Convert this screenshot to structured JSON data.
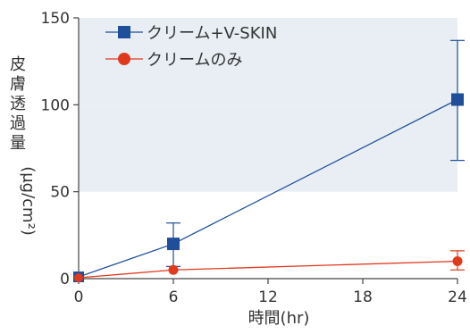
{
  "chart_data": {
    "type": "line",
    "title": "",
    "xlabel": "時間(hr)",
    "ylabel": "皮膚透過量 (μg/cm²)",
    "ylabel_parts": {
      "vertical": [
        "皮",
        "膚",
        "透",
        "過",
        "量"
      ],
      "rotated": "(μg/cm²)"
    },
    "xlim": [
      0,
      24
    ],
    "ylim": [
      0,
      150
    ],
    "xticks": [
      0,
      6,
      12,
      18,
      24
    ],
    "yticks": [
      0,
      50,
      100,
      150
    ],
    "grid": false,
    "background_bands": [
      [
        50,
        100
      ],
      [
        100,
        150
      ]
    ],
    "band_color": "#e8eef3",
    "legend_position": "top-left",
    "series": [
      {
        "name": "クリーム+V-SKIN",
        "color": "#1f4e9a",
        "marker": "square",
        "x": [
          0,
          6,
          24
        ],
        "y": [
          1,
          20,
          103
        ],
        "err_low": [
          1,
          7,
          68
        ],
        "err_high": [
          1,
          32,
          137
        ]
      },
      {
        "name": "クリームのみ",
        "color": "#e03a1e",
        "marker": "circle",
        "x": [
          0,
          6,
          24
        ],
        "y": [
          0.5,
          5,
          10
        ],
        "err_low": [
          0.5,
          5,
          5
        ],
        "err_high": [
          0.5,
          5,
          16
        ]
      }
    ]
  }
}
